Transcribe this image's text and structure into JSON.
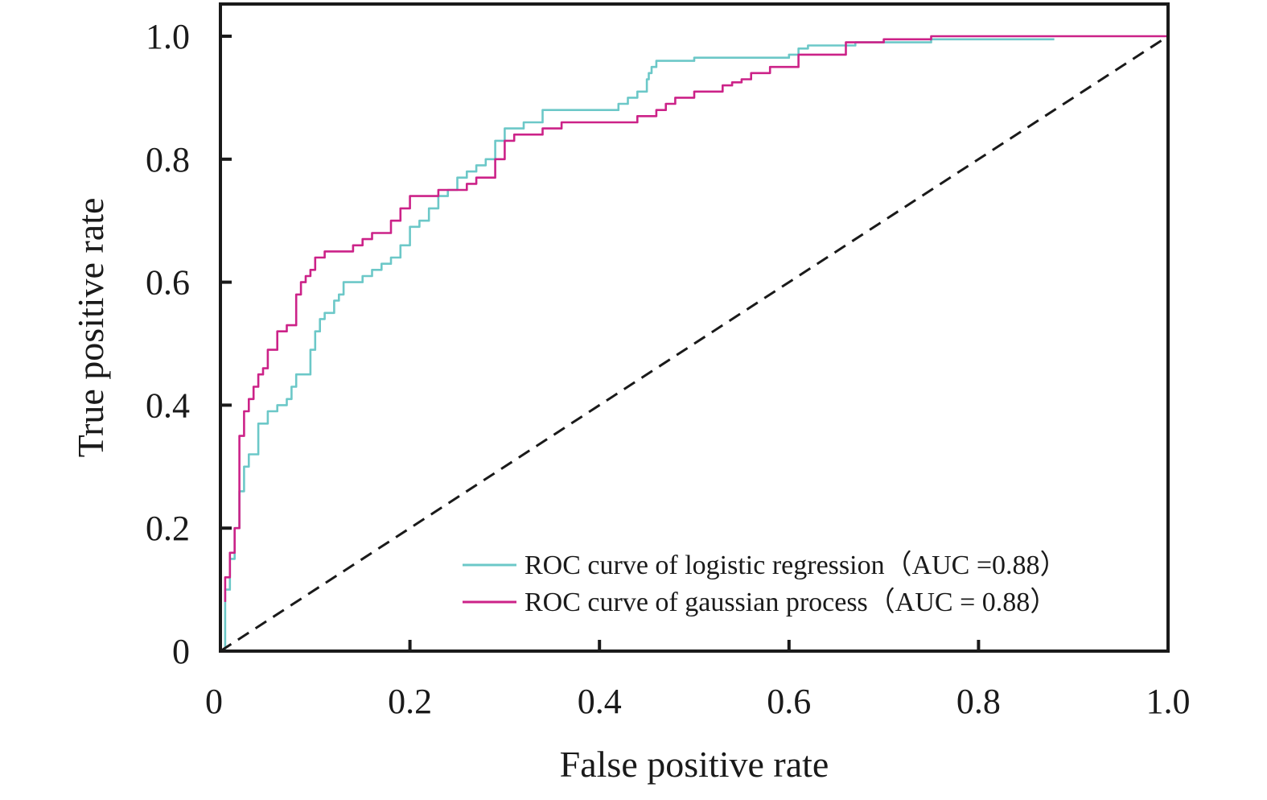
{
  "chart_data": {
    "type": "line",
    "xlabel": "False positive rate",
    "ylabel": "True positive rate",
    "xlim": [
      0,
      1.0
    ],
    "ylim": [
      0,
      1.0
    ],
    "xticks": [
      {
        "value": 0,
        "label": "0"
      },
      {
        "value": 0.2,
        "label": "0.2"
      },
      {
        "value": 0.4,
        "label": "0.4"
      },
      {
        "value": 0.6,
        "label": "0.6"
      },
      {
        "value": 0.8,
        "label": "0.8"
      },
      {
        "value": 1.0,
        "label": "1.0"
      }
    ],
    "yticks": [
      {
        "value": 0,
        "label": "0"
      },
      {
        "value": 0.2,
        "label": "0.2"
      },
      {
        "value": 0.4,
        "label": "0.4"
      },
      {
        "value": 0.6,
        "label": "0.6"
      },
      {
        "value": 0.8,
        "label": "0.8"
      },
      {
        "value": 1.0,
        "label": "1.0"
      }
    ],
    "grid": false,
    "legend_position": "lower-right",
    "series": [
      {
        "name": "ROC curve of logistic regression（AUC =0.88）",
        "color": "#6cc8c8",
        "x": [
          0.005,
          0.005,
          0.01,
          0.01,
          0.015,
          0.015,
          0.02,
          0.02,
          0.025,
          0.025,
          0.03,
          0.03,
          0.04,
          0.04,
          0.05,
          0.05,
          0.06,
          0.06,
          0.07,
          0.07,
          0.075,
          0.075,
          0.08,
          0.08,
          0.095,
          0.095,
          0.1,
          0.1,
          0.105,
          0.105,
          0.11,
          0.11,
          0.12,
          0.12,
          0.125,
          0.125,
          0.13,
          0.13,
          0.15,
          0.15,
          0.16,
          0.16,
          0.17,
          0.17,
          0.18,
          0.18,
          0.19,
          0.19,
          0.2,
          0.2,
          0.21,
          0.21,
          0.22,
          0.22,
          0.23,
          0.23,
          0.24,
          0.24,
          0.25,
          0.25,
          0.26,
          0.26,
          0.27,
          0.27,
          0.28,
          0.28,
          0.29,
          0.29,
          0.3,
          0.3,
          0.32,
          0.32,
          0.34,
          0.34,
          0.42,
          0.42,
          0.43,
          0.43,
          0.44,
          0.44,
          0.45,
          0.45,
          0.452,
          0.452,
          0.455,
          0.455,
          0.46,
          0.46,
          0.5,
          0.5,
          0.6,
          0.6,
          0.61,
          0.61,
          0.62,
          0.62,
          0.67,
          0.67,
          0.75,
          0.75,
          0.88
        ],
        "y": [
          0,
          0.1,
          0.1,
          0.15,
          0.15,
          0.2,
          0.2,
          0.26,
          0.26,
          0.3,
          0.3,
          0.32,
          0.32,
          0.37,
          0.37,
          0.39,
          0.39,
          0.4,
          0.4,
          0.41,
          0.41,
          0.43,
          0.43,
          0.45,
          0.45,
          0.49,
          0.49,
          0.52,
          0.52,
          0.54,
          0.54,
          0.55,
          0.55,
          0.57,
          0.57,
          0.58,
          0.58,
          0.6,
          0.6,
          0.61,
          0.61,
          0.62,
          0.62,
          0.63,
          0.63,
          0.64,
          0.64,
          0.66,
          0.66,
          0.69,
          0.69,
          0.7,
          0.7,
          0.72,
          0.72,
          0.74,
          0.74,
          0.75,
          0.75,
          0.77,
          0.77,
          0.78,
          0.78,
          0.79,
          0.79,
          0.8,
          0.8,
          0.83,
          0.83,
          0.85,
          0.85,
          0.86,
          0.86,
          0.88,
          0.88,
          0.89,
          0.89,
          0.9,
          0.9,
          0.91,
          0.91,
          0.93,
          0.93,
          0.94,
          0.94,
          0.95,
          0.95,
          0.96,
          0.96,
          0.965,
          0.965,
          0.97,
          0.97,
          0.98,
          0.98,
          0.985,
          0.985,
          0.99,
          0.99,
          0.995,
          0.995
        ]
      },
      {
        "name": "ROC curve of gaussian process（AUC = 0.88）",
        "color": "#cc2288",
        "x": [
          0.005,
          0.005,
          0.01,
          0.01,
          0.015,
          0.015,
          0.02,
          0.02,
          0.025,
          0.025,
          0.03,
          0.03,
          0.035,
          0.035,
          0.04,
          0.04,
          0.045,
          0.045,
          0.05,
          0.05,
          0.06,
          0.06,
          0.07,
          0.07,
          0.08,
          0.08,
          0.085,
          0.085,
          0.09,
          0.09,
          0.095,
          0.095,
          0.1,
          0.1,
          0.11,
          0.11,
          0.14,
          0.14,
          0.15,
          0.15,
          0.16,
          0.16,
          0.18,
          0.18,
          0.19,
          0.19,
          0.2,
          0.2,
          0.23,
          0.23,
          0.26,
          0.26,
          0.27,
          0.27,
          0.29,
          0.29,
          0.3,
          0.3,
          0.31,
          0.31,
          0.34,
          0.34,
          0.36,
          0.36,
          0.42,
          0.42,
          0.44,
          0.44,
          0.46,
          0.46,
          0.47,
          0.47,
          0.48,
          0.48,
          0.5,
          0.5,
          0.53,
          0.53,
          0.54,
          0.54,
          0.55,
          0.55,
          0.56,
          0.56,
          0.58,
          0.58,
          0.61,
          0.61,
          0.66,
          0.66,
          0.7,
          0.7,
          0.75,
          0.75,
          1.0
        ],
        "y": [
          0.08,
          0.12,
          0.12,
          0.16,
          0.16,
          0.2,
          0.2,
          0.35,
          0.35,
          0.39,
          0.39,
          0.41,
          0.41,
          0.43,
          0.43,
          0.45,
          0.45,
          0.46,
          0.46,
          0.49,
          0.49,
          0.52,
          0.52,
          0.53,
          0.53,
          0.58,
          0.58,
          0.6,
          0.6,
          0.61,
          0.61,
          0.62,
          0.62,
          0.64,
          0.64,
          0.65,
          0.65,
          0.66,
          0.66,
          0.67,
          0.67,
          0.68,
          0.68,
          0.7,
          0.7,
          0.72,
          0.72,
          0.74,
          0.74,
          0.75,
          0.75,
          0.76,
          0.76,
          0.77,
          0.77,
          0.8,
          0.8,
          0.83,
          0.83,
          0.84,
          0.84,
          0.85,
          0.85,
          0.86,
          0.86,
          0.86,
          0.86,
          0.87,
          0.87,
          0.88,
          0.88,
          0.89,
          0.89,
          0.9,
          0.9,
          0.91,
          0.91,
          0.92,
          0.92,
          0.925,
          0.925,
          0.93,
          0.93,
          0.94,
          0.94,
          0.95,
          0.95,
          0.97,
          0.97,
          0.99,
          0.99,
          0.995,
          0.995,
          1.0,
          1.0
        ]
      },
      {
        "name": "",
        "style": "dashed",
        "color": "#1a1a1a",
        "x": [
          0,
          1.0
        ],
        "y": [
          0,
          1.0
        ]
      }
    ]
  }
}
